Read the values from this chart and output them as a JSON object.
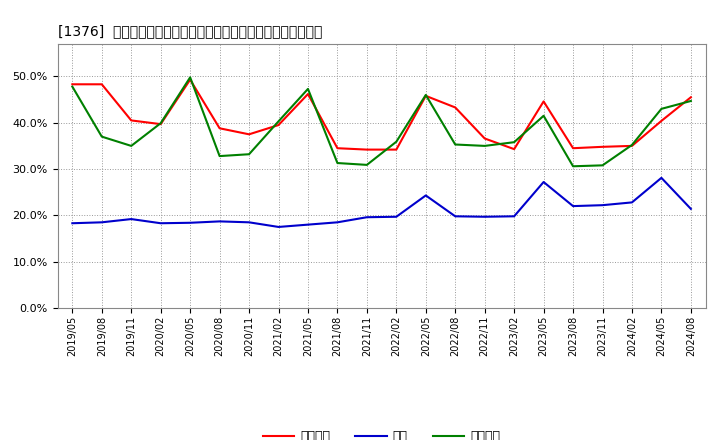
{
  "title": "[1376]  売上債権、在庫、買入債務の総資産に対する比率の推移",
  "dates": [
    "2019/05",
    "2019/08",
    "2019/11",
    "2020/02",
    "2020/05",
    "2020/08",
    "2020/11",
    "2021/02",
    "2021/05",
    "2021/08",
    "2021/11",
    "2022/02",
    "2022/05",
    "2022/08",
    "2022/11",
    "2023/02",
    "2023/05",
    "2023/08",
    "2023/11",
    "2024/02",
    "2024/05",
    "2024/08"
  ],
  "uriage": [
    0.483,
    0.483,
    0.405,
    0.397,
    0.493,
    0.388,
    0.375,
    0.395,
    0.462,
    0.345,
    0.342,
    0.342,
    0.458,
    0.433,
    0.366,
    0.343,
    0.446,
    0.345,
    0.348,
    0.35,
    0.404,
    0.455
  ],
  "zaiko": [
    0.183,
    0.185,
    0.192,
    0.183,
    0.184,
    0.187,
    0.185,
    0.175,
    0.18,
    0.185,
    0.196,
    0.197,
    0.243,
    0.198,
    0.197,
    0.198,
    0.272,
    0.22,
    0.222,
    0.228,
    0.281,
    0.214
  ],
  "kaiire": [
    0.478,
    0.37,
    0.35,
    0.399,
    0.498,
    0.328,
    0.332,
    0.403,
    0.473,
    0.313,
    0.309,
    0.359,
    0.46,
    0.353,
    0.35,
    0.358,
    0.415,
    0.306,
    0.308,
    0.352,
    0.43,
    0.447
  ],
  "uriage_color": "#ff0000",
  "zaiko_color": "#0000cc",
  "kaiire_color": "#008000",
  "bg_color": "#ffffff",
  "plot_bg_color": "#ffffff",
  "grid_color": "#999999",
  "ylim": [
    0.0,
    0.57
  ],
  "yticks": [
    0.0,
    0.1,
    0.2,
    0.3,
    0.4,
    0.5
  ],
  "legend_labels": [
    "売上債権",
    "在庫",
    "買入債務"
  ]
}
